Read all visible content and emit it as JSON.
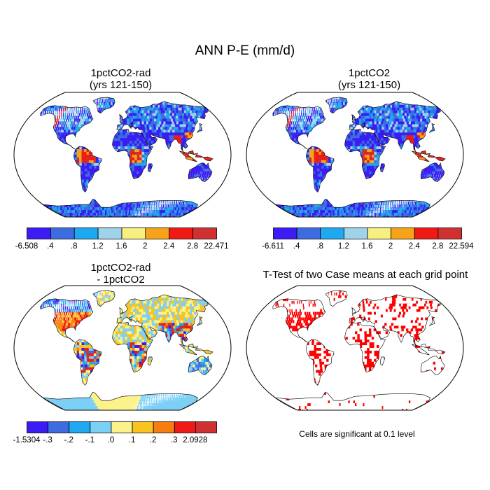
{
  "figure": {
    "title": "ANN P-E (mm/d)"
  },
  "panels": [
    {
      "id": "p1",
      "title": "1pctCO2-rad\n(yrs 121-150)",
      "fill": "pe"
    },
    {
      "id": "p2",
      "title": "1pctCO2\n(yrs 121-150)",
      "fill": "pe"
    },
    {
      "id": "p3",
      "title": "1pctCO2-rad\n- 1pctCO2",
      "fill": "diff"
    },
    {
      "id": "p4",
      "title": "T-Test of two Case means at each grid point",
      "fill": "ttest"
    }
  ],
  "colorbars": [
    {
      "id": "cb1",
      "colors": [
        "#3b1cf5",
        "#3d6ce0",
        "#1ea8ef",
        "#9fd3ea",
        "#f7ef7f",
        "#f7a319",
        "#ef1a15",
        "#d03030"
      ],
      "labels": [
        "-6.508",
        ".4",
        ".8",
        "1.2",
        "1.6",
        "2",
        "2.4",
        "2.8",
        "22.471"
      ]
    },
    {
      "id": "cb2",
      "colors": [
        "#3b1cf5",
        "#3d6ce0",
        "#1ea8ef",
        "#9fd3ea",
        "#f7ef7f",
        "#f7a319",
        "#ef1a15",
        "#d03030"
      ],
      "labels": [
        "-6.611",
        ".4",
        ".8",
        "1.2",
        "1.6",
        "2",
        "2.4",
        "2.8",
        "22.594"
      ]
    },
    {
      "id": "cb3",
      "colors": [
        "#3b1cf5",
        "#3d6ce0",
        "#1ea8ef",
        "#7dd0f5",
        "#fbf28a",
        "#f9c420",
        "#f77d10",
        "#ef1a15",
        "#d03030"
      ],
      "labels": [
        "-1.5304",
        "-.3",
        "-.2",
        "-.1",
        ".0",
        ".1",
        ".2",
        ".3",
        "2.0928"
      ]
    }
  ],
  "significance_note": "Cells are significant at 0.1 level",
  "significance_color": "#ff0000"
}
